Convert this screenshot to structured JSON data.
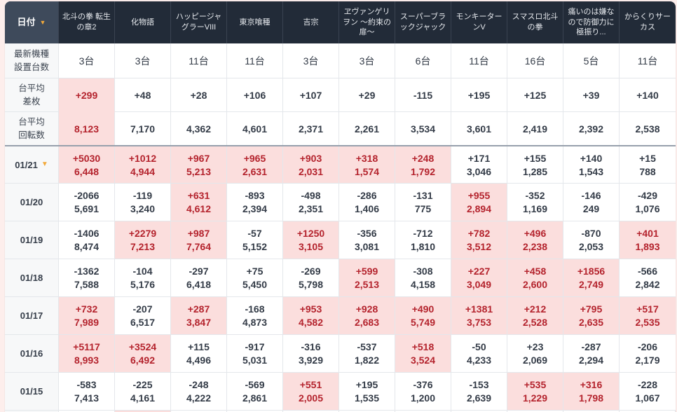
{
  "colors": {
    "page_background": "#fdeeec",
    "header_background": "#222b38",
    "date_header_background": "#3e4a5b",
    "sort_icon_accent": "#f2a93b",
    "highlight_background": "#fbdedd",
    "highlight_text": "#b4232d",
    "body_text": "#333b47"
  },
  "table": {
    "date_header": {
      "label": "日付",
      "sort_icon": "▼"
    },
    "columns": [
      "北斗の拳 転生の章2",
      "化物語",
      "ハッピージャグラーVIII",
      "東京喰種",
      "吉宗",
      "ヱヴァンゲリヲン 〜約束の扉〜",
      "スーパーブラックジャック",
      "モンキーターンV",
      "スマスロ北斗の拳",
      "痛いのは嫌なので防御力に極振り...",
      "からくりサーカス"
    ],
    "stat_rows": [
      {
        "label_lines": [
          "最新機種",
          "設置台数"
        ],
        "values": [
          "3台",
          "3台",
          "11台",
          "11台",
          "3台",
          "3台",
          "6台",
          "11台",
          "16台",
          "5台",
          "11台"
        ],
        "highlights": [
          0,
          0,
          0,
          0,
          0,
          0,
          0,
          0,
          0,
          0,
          0
        ]
      },
      {
        "label_lines": [
          "台平均",
          "差枚"
        ],
        "values": [
          "+299",
          "+48",
          "+28",
          "+106",
          "+107",
          "+29",
          "-115",
          "+195",
          "+125",
          "+39",
          "+140"
        ],
        "highlights": [
          1,
          0,
          0,
          0,
          0,
          0,
          0,
          0,
          0,
          0,
          0
        ]
      },
      {
        "label_lines": [
          "台平均",
          "回転数"
        ],
        "values": [
          "8,123",
          "7,170",
          "4,362",
          "4,601",
          "2,371",
          "2,261",
          "3,534",
          "3,601",
          "2,419",
          "2,392",
          "2,538"
        ],
        "highlights": [
          1,
          0,
          0,
          0,
          0,
          0,
          0,
          0,
          0,
          0,
          0
        ],
        "merge_top": true
      }
    ],
    "date_rows": [
      {
        "date": "01/21",
        "sort_icon": "▼",
        "cells": [
          [
            "+5030",
            "6,448",
            1
          ],
          [
            "+1012",
            "4,944",
            1
          ],
          [
            "+967",
            "5,213",
            1
          ],
          [
            "+965",
            "2,631",
            1
          ],
          [
            "+903",
            "2,031",
            1
          ],
          [
            "+318",
            "1,574",
            1
          ],
          [
            "+248",
            "1,792",
            1
          ],
          [
            "+171",
            "3,046",
            0
          ],
          [
            "+155",
            "1,285",
            0
          ],
          [
            "+140",
            "1,543",
            0
          ],
          [
            "+15",
            "788",
            0
          ]
        ]
      },
      {
        "date": "01/20",
        "cells": [
          [
            "-2066",
            "5,691",
            0
          ],
          [
            "-119",
            "3,240",
            0
          ],
          [
            "+631",
            "4,612",
            1
          ],
          [
            "-893",
            "2,394",
            0
          ],
          [
            "-498",
            "2,351",
            0
          ],
          [
            "-286",
            "1,406",
            0
          ],
          [
            "-131",
            "775",
            0
          ],
          [
            "+955",
            "2,894",
            1
          ],
          [
            "-352",
            "1,169",
            0
          ],
          [
            "-146",
            "249",
            0
          ],
          [
            "-429",
            "1,076",
            0
          ]
        ]
      },
      {
        "date": "01/19",
        "cells": [
          [
            "-1406",
            "8,474",
            0
          ],
          [
            "+2279",
            "7,213",
            1
          ],
          [
            "+987",
            "7,764",
            1
          ],
          [
            "-57",
            "5,152",
            0
          ],
          [
            "+1250",
            "3,105",
            1
          ],
          [
            "-356",
            "3,081",
            0
          ],
          [
            "-712",
            "1,810",
            0
          ],
          [
            "+782",
            "3,512",
            1
          ],
          [
            "+496",
            "2,238",
            1
          ],
          [
            "-870",
            "2,053",
            0
          ],
          [
            "+401",
            "1,893",
            1
          ]
        ]
      },
      {
        "date": "01/18",
        "cells": [
          [
            "-1362",
            "7,588",
            0
          ],
          [
            "-104",
            "5,176",
            0
          ],
          [
            "-297",
            "6,418",
            0
          ],
          [
            "+75",
            "5,450",
            0
          ],
          [
            "-269",
            "5,798",
            0
          ],
          [
            "+599",
            "2,513",
            1
          ],
          [
            "-308",
            "4,158",
            0
          ],
          [
            "+227",
            "3,049",
            1
          ],
          [
            "+458",
            "2,600",
            1
          ],
          [
            "+1856",
            "2,749",
            1
          ],
          [
            "-566",
            "2,842",
            0
          ]
        ]
      },
      {
        "date": "01/17",
        "cells": [
          [
            "+732",
            "7,989",
            1
          ],
          [
            "-207",
            "6,517",
            0
          ],
          [
            "+287",
            "3,847",
            1
          ],
          [
            "-168",
            "4,873",
            0
          ],
          [
            "+953",
            "4,582",
            1
          ],
          [
            "+928",
            "2,683",
            1
          ],
          [
            "+490",
            "5,749",
            1
          ],
          [
            "+1381",
            "3,753",
            1
          ],
          [
            "+212",
            "2,528",
            1
          ],
          [
            "+795",
            "2,635",
            1
          ],
          [
            "+517",
            "2,535",
            1
          ]
        ]
      },
      {
        "date": "01/16",
        "cells": [
          [
            "+5117",
            "8,993",
            1
          ],
          [
            "+3524",
            "6,492",
            1
          ],
          [
            "+115",
            "4,496",
            0
          ],
          [
            "-917",
            "5,031",
            0
          ],
          [
            "-316",
            "3,929",
            0
          ],
          [
            "-537",
            "1,822",
            0
          ],
          [
            "+518",
            "3,524",
            1
          ],
          [
            "-50",
            "4,233",
            0
          ],
          [
            "+23",
            "2,069",
            0
          ],
          [
            "-287",
            "2,294",
            0
          ],
          [
            "-206",
            "2,179",
            0
          ]
        ]
      },
      {
        "date": "01/15",
        "cells": [
          [
            "-583",
            "7,413",
            0
          ],
          [
            "-225",
            "4,161",
            0
          ],
          [
            "-248",
            "4,222",
            0
          ],
          [
            "-569",
            "2,861",
            0
          ],
          [
            "+551",
            "2,005",
            1
          ],
          [
            "+195",
            "1,535",
            0
          ],
          [
            "-376",
            "1,200",
            0
          ],
          [
            "-153",
            "2,639",
            0
          ],
          [
            "+535",
            "1,229",
            1
          ],
          [
            "+316",
            "1,798",
            1
          ],
          [
            "-228",
            "1,067",
            0
          ]
        ]
      },
      {
        "date": "",
        "partial": true,
        "cells": [
          [
            "",
            "",
            0
          ],
          [
            "",
            "",
            1
          ],
          [
            "",
            "",
            0
          ],
          [
            "",
            "",
            0
          ],
          [
            "",
            "",
            0
          ],
          [
            "",
            "",
            0
          ],
          [
            "",
            "",
            0
          ],
          [
            "",
            "",
            0
          ],
          [
            "",
            "",
            0
          ],
          [
            "",
            "",
            0
          ],
          [
            "",
            "",
            0
          ]
        ]
      }
    ]
  }
}
